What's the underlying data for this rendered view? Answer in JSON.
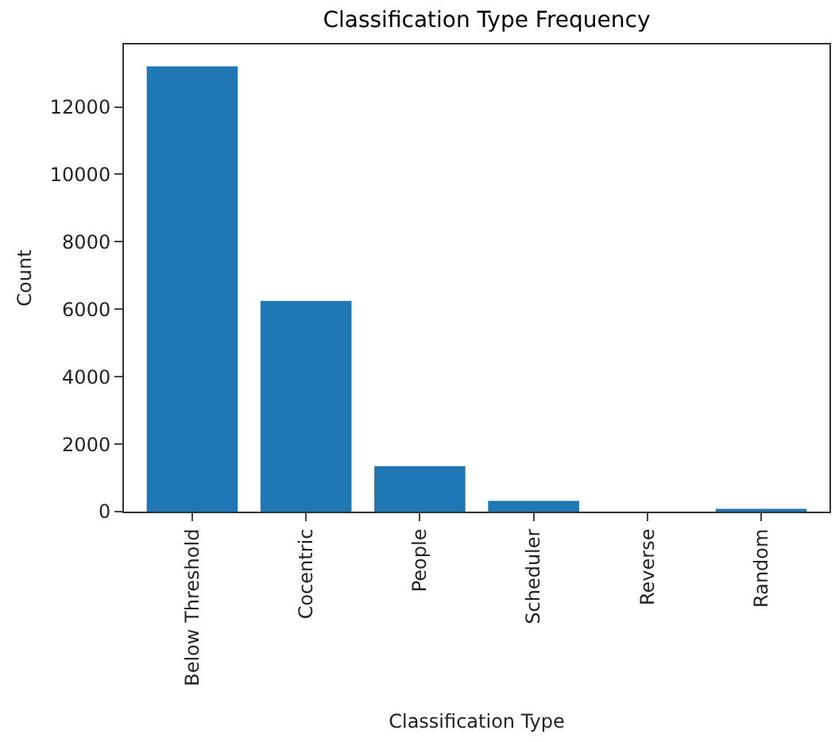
{
  "chart_data": {
    "type": "bar",
    "title": "Classification Type Frequency",
    "xlabel": "Classification Type",
    "ylabel": "Count",
    "categories": [
      "Below Threshold",
      "Cocentric",
      "People",
      "Scheduler",
      "Reverse",
      "Random"
    ],
    "values": [
      13200,
      6250,
      1350,
      320,
      0,
      80
    ],
    "color": "#1f77b4",
    "ylim": [
      0,
      13850
    ],
    "yticks": [
      0,
      2000,
      4000,
      6000,
      8000,
      10000,
      12000
    ]
  }
}
